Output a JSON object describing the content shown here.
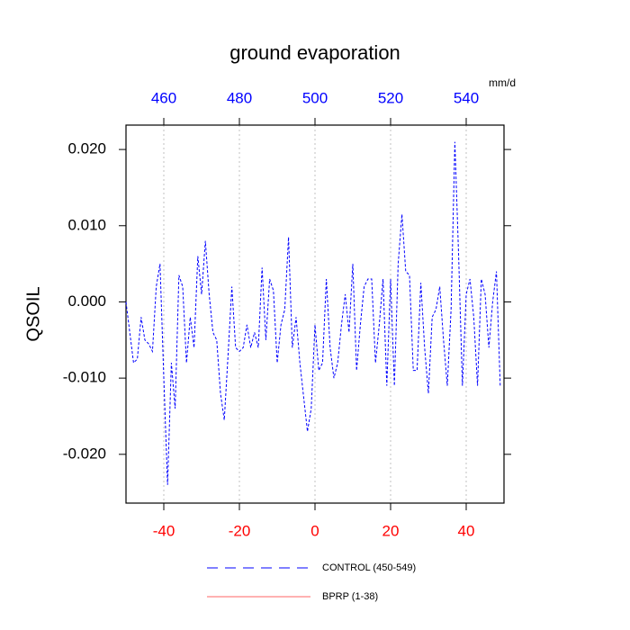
{
  "chart_data": {
    "type": "line",
    "title": "ground evaporation",
    "ylabel": "QSOIL",
    "x2label": "mm/d",
    "x": [
      450,
      451,
      452,
      453,
      454,
      455,
      456,
      457,
      458,
      459,
      460,
      461,
      462,
      463,
      464,
      465,
      466,
      467,
      468,
      469,
      470,
      471,
      472,
      473,
      474,
      475,
      476,
      477,
      478,
      479,
      480,
      481,
      482,
      483,
      484,
      485,
      486,
      487,
      488,
      489,
      490,
      491,
      492,
      493,
      494,
      495,
      496,
      497,
      498,
      499,
      500,
      501,
      502,
      503,
      504,
      505,
      506,
      507,
      508,
      509,
      510,
      511,
      512,
      513,
      514,
      515,
      516,
      517,
      518,
      519,
      520,
      521,
      522,
      523,
      524,
      525,
      526,
      527,
      528,
      529,
      530,
      531,
      532,
      533,
      534,
      535,
      536,
      537,
      538,
      539,
      540,
      541,
      542,
      543,
      544,
      545,
      546,
      547,
      548,
      549
    ],
    "series": [
      {
        "name": "CONTROL (450-549)",
        "color": "#0000ff",
        "dash": true,
        "values": [
          0.0,
          -0.004,
          -0.008,
          -0.0075,
          -0.002,
          -0.005,
          -0.0055,
          -0.0065,
          0.002,
          0.005,
          -0.01,
          -0.024,
          -0.008,
          -0.014,
          0.0035,
          0.002,
          -0.008,
          -0.002,
          -0.006,
          0.006,
          0.001,
          0.008,
          0.001,
          -0.004,
          -0.005,
          -0.012,
          -0.0155,
          -0.007,
          0.002,
          -0.006,
          -0.0065,
          -0.006,
          -0.003,
          -0.006,
          -0.004,
          -0.006,
          0.0045,
          -0.005,
          0.003,
          0.0015,
          -0.008,
          -0.003,
          -0.001,
          0.0085,
          -0.006,
          -0.002,
          -0.008,
          -0.0125,
          -0.017,
          -0.014,
          -0.003,
          -0.009,
          -0.008,
          0.003,
          -0.006,
          -0.01,
          -0.008,
          -0.003,
          0.001,
          -0.004,
          0.005,
          -0.009,
          -0.003,
          0.002,
          0.003,
          0.003,
          -0.008,
          -0.003,
          0.003,
          -0.011,
          0.003,
          -0.011,
          0.005,
          0.0115,
          0.004,
          0.0035,
          -0.009,
          -0.009,
          0.0025,
          -0.006,
          -0.012,
          -0.002,
          -0.001,
          0.002,
          -0.005,
          -0.011,
          -0.001,
          0.021,
          0.006,
          -0.011,
          0.001,
          0.003,
          -0.002,
          -0.011,
          0.003,
          0.001,
          -0.006,
          0.0,
          0.004,
          -0.011
        ]
      },
      {
        "name": "BPRP (1-38)",
        "color": "#ff6666",
        "dash": false
      }
    ],
    "xlim": [
      -50,
      50
    ],
    "xticks": [
      -40,
      -20,
      0,
      20,
      40
    ],
    "x2lim": [
      450,
      550
    ],
    "x2ticks": [
      460,
      480,
      500,
      520,
      540
    ],
    "ylim": [
      -0.0264,
      0.0232
    ],
    "yticks": [
      {
        "value": 0.02,
        "label": "0.020"
      },
      {
        "value": 0.01,
        "label": "0.010"
      },
      {
        "value": 0,
        "label": "0.000"
      },
      {
        "value": -0.01,
        "label": "-0.010"
      },
      {
        "value": -0.02,
        "label": "-0.020"
      }
    ],
    "grid": true
  }
}
